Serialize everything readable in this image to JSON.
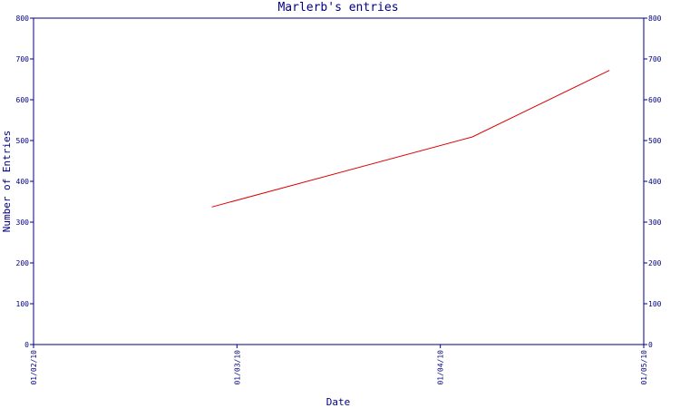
{
  "chart_data": {
    "type": "line",
    "title": "Marlerb's entries",
    "xlabel": "Date",
    "ylabel": "Number of Entries",
    "x_ticks": [
      "01/02/10",
      "01/03/10",
      "01/04/10",
      "01/05/10"
    ],
    "y_ticks": [
      "0",
      "100",
      "200",
      "300",
      "400",
      "500",
      "600",
      "700",
      "800"
    ],
    "ylim": [
      0,
      800
    ],
    "xlim": [
      "2010-02-01",
      "2010-05-01"
    ],
    "grid": false,
    "series": [
      {
        "x": [
          "2010-02-27",
          "2010-04-06",
          "2010-04-26"
        ],
        "values": [
          337,
          509,
          672
        ]
      }
    ],
    "colors": {
      "line": "#dd0000",
      "axis": "#000080",
      "text": "#000080"
    }
  }
}
